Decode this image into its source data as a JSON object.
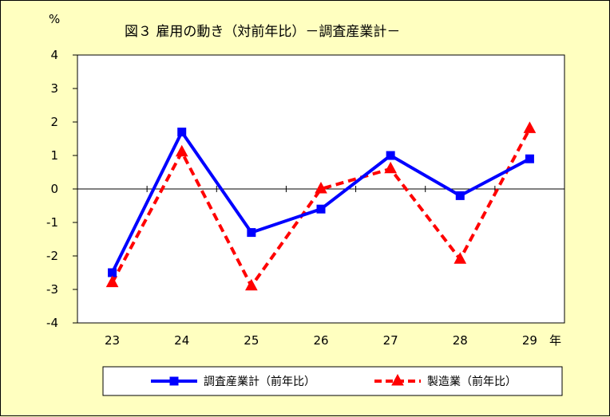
{
  "chart_data": {
    "type": "line",
    "title": "図３ 雇用の動き（対前年比）－調査産業計－",
    "y_unit": "%",
    "x_unit": "年",
    "categories": [
      "23",
      "24",
      "25",
      "26",
      "27",
      "28",
      "29"
    ],
    "ylim": [
      -4,
      4
    ],
    "yticks": [
      "4",
      "3",
      "2",
      "1",
      "0",
      "-1",
      "-2",
      "-3",
      "-4"
    ],
    "ytick_values": [
      4,
      3,
      2,
      1,
      0,
      -1,
      -2,
      -3,
      -4
    ],
    "grid": false,
    "legend_position": "bottom",
    "series": [
      {
        "name": "調査産業計（前年比）",
        "values": [
          -2.5,
          1.7,
          -1.3,
          -0.6,
          1.0,
          -0.2,
          0.9
        ],
        "color": "#0000ff",
        "marker": "square",
        "line": "solid"
      },
      {
        "name": "製造業（前年比）",
        "values": [
          -2.8,
          1.1,
          -2.9,
          0.0,
          0.6,
          -2.1,
          1.8
        ],
        "color": "#ff0000",
        "marker": "triangle",
        "line": "dashed"
      }
    ]
  }
}
